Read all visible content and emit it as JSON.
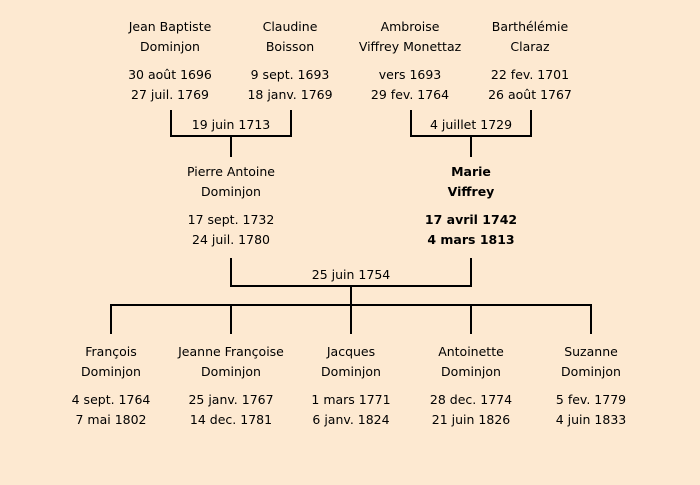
{
  "grandparents": [
    {
      "name_line1": "Jean Baptiste",
      "name_line2": "Dominjon",
      "birth": "30 août 1696",
      "death": "27 juil. 1769"
    },
    {
      "name_line1": "Claudine",
      "name_line2": "Boisson",
      "birth": "9 sept. 1693",
      "death": "18 janv. 1769"
    },
    {
      "name_line1": "Ambroise",
      "name_line2": "Viffrey Monettaz",
      "birth": "vers 1693",
      "death": "29 fev. 1764"
    },
    {
      "name_line1": "Barthélémie",
      "name_line2": "Claraz",
      "birth": "22 fev. 1701",
      "death": "26 août 1767"
    }
  ],
  "grandparent_marriages": [
    "19 juin 1713",
    "4 juillet 1729"
  ],
  "parents": [
    {
      "name_line1": "Pierre Antoine",
      "name_line2": "Dominjon",
      "birth": "17 sept. 1732",
      "death": "24 juil. 1780"
    },
    {
      "name_line1": "Marie",
      "name_line2": "Viffrey",
      "birth": "17 avril 1742",
      "death": "4 mars 1813"
    }
  ],
  "parent_marriage": "25 juin 1754",
  "children": [
    {
      "name_line1": "François",
      "name_line2": "Dominjon",
      "birth": "4 sept. 1764",
      "death": "7 mai 1802"
    },
    {
      "name_line1": "Jeanne Françoise",
      "name_line2": "Dominjon",
      "birth": "25 janv. 1767",
      "death": "14 dec. 1781"
    },
    {
      "name_line1": "Jacques",
      "name_line2": "Dominjon",
      "birth": "1 mars 1771",
      "death": "6 janv. 1824"
    },
    {
      "name_line1": "Antoinette",
      "name_line2": "Dominjon",
      "birth": "28 dec. 1774",
      "death": "21 juin 1826"
    },
    {
      "name_line1": "Suzanne",
      "name_line2": "Dominjon",
      "birth": "5 fev. 1779",
      "death": "4 juin 1833"
    }
  ],
  "colors": {
    "background": "#fde9d1",
    "lines": "#000000"
  }
}
